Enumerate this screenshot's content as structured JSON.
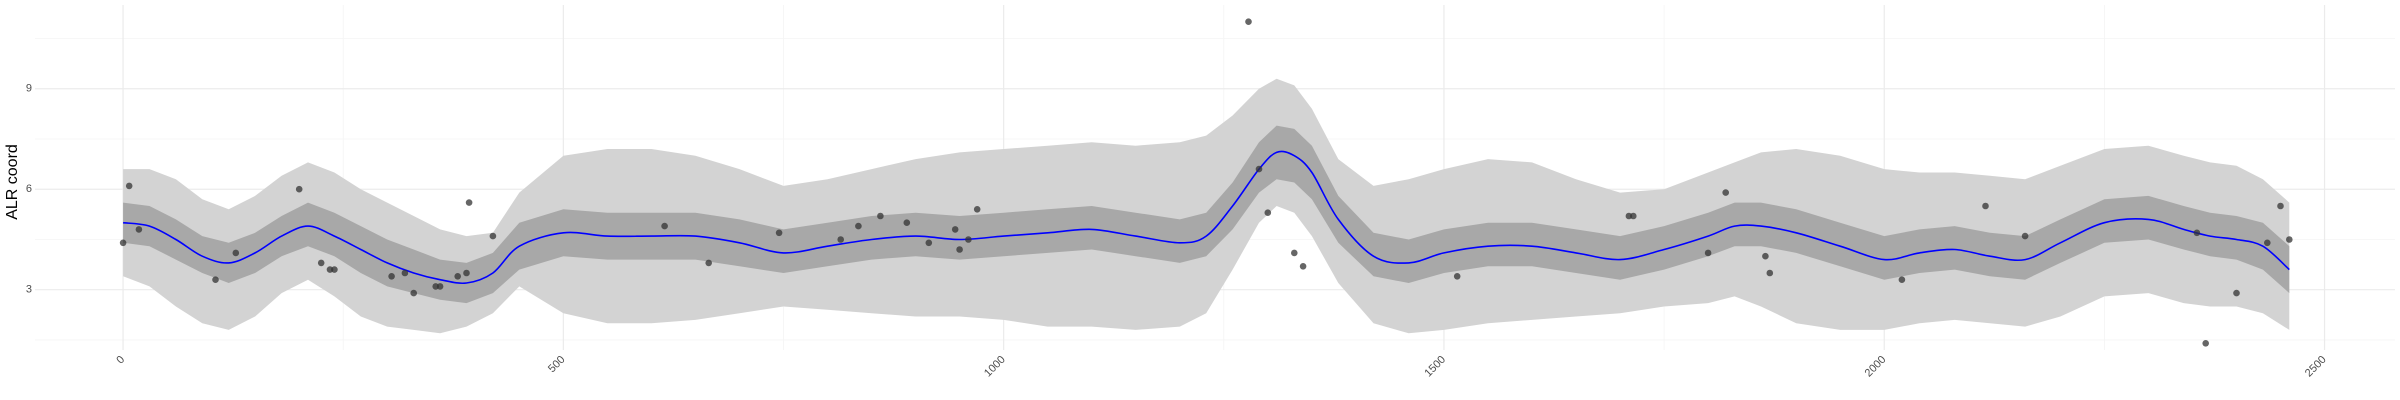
{
  "chart_data": {
    "type": "line",
    "title": "",
    "xlabel": "",
    "ylabel": "ALR coord",
    "xlim": [
      -100,
      2580
    ],
    "ylim": [
      1.2,
      11.5
    ],
    "x_ticks": [
      0,
      500,
      1000,
      1500,
      2000,
      2500
    ],
    "x_tick_labels": [
      "0",
      "500",
      "1000",
      "1500",
      "2000",
      "2500"
    ],
    "y_ticks": [
      3,
      6,
      9
    ],
    "y_tick_labels": [
      "3",
      "6",
      "9"
    ],
    "grid": true,
    "legend": "none",
    "colors": {
      "line": "#0000ff",
      "inner_band": "#a8a8a8",
      "outer_band": "#d3d3d3",
      "points": "#333333"
    },
    "series": [
      {
        "kind": "smooth_mean",
        "x": [
          0,
          30,
          60,
          90,
          120,
          150,
          180,
          210,
          240,
          270,
          300,
          330,
          360,
          390,
          420,
          450,
          500,
          550,
          600,
          650,
          700,
          750,
          800,
          850,
          900,
          950,
          1000,
          1050,
          1100,
          1150,
          1200,
          1230,
          1260,
          1290,
          1310,
          1330,
          1350,
          1380,
          1420,
          1460,
          1500,
          1550,
          1600,
          1650,
          1700,
          1750,
          1800,
          1830,
          1860,
          1900,
          1950,
          2000,
          2040,
          2080,
          2120,
          2160,
          2200,
          2250,
          2300,
          2340,
          2370,
          2400,
          2430,
          2460
        ],
        "mean": [
          5.0,
          4.9,
          4.5,
          4.0,
          3.8,
          4.1,
          4.6,
          4.9,
          4.6,
          4.2,
          3.8,
          3.5,
          3.3,
          3.2,
          3.5,
          4.3,
          4.7,
          4.6,
          4.6,
          4.6,
          4.4,
          4.1,
          4.3,
          4.5,
          4.6,
          4.5,
          4.6,
          4.7,
          4.8,
          4.6,
          4.4,
          4.6,
          5.5,
          6.6,
          7.1,
          7.0,
          6.5,
          5.1,
          4.0,
          3.8,
          4.1,
          4.3,
          4.3,
          4.1,
          3.9,
          4.2,
          4.6,
          4.9,
          4.9,
          4.7,
          4.3,
          3.9,
          4.1,
          4.2,
          4.0,
          3.9,
          4.4,
          5.0,
          5.1,
          4.8,
          4.6,
          4.5,
          4.3,
          3.6
        ],
        "inner_lower": [
          4.4,
          4.3,
          3.9,
          3.5,
          3.2,
          3.5,
          4.0,
          4.3,
          4.0,
          3.5,
          3.1,
          2.9,
          2.7,
          2.6,
          2.9,
          3.6,
          4.0,
          3.9,
          3.9,
          3.9,
          3.7,
          3.5,
          3.7,
          3.9,
          4.0,
          3.9,
          4.0,
          4.1,
          4.2,
          4.0,
          3.8,
          4.0,
          4.8,
          5.9,
          6.3,
          6.2,
          5.7,
          4.4,
          3.4,
          3.2,
          3.5,
          3.7,
          3.7,
          3.5,
          3.3,
          3.6,
          4.0,
          4.3,
          4.3,
          4.1,
          3.7,
          3.3,
          3.5,
          3.6,
          3.4,
          3.3,
          3.8,
          4.4,
          4.5,
          4.2,
          4.0,
          3.9,
          3.6,
          2.9
        ],
        "inner_upper": [
          5.6,
          5.5,
          5.1,
          4.6,
          4.4,
          4.7,
          5.2,
          5.6,
          5.3,
          4.9,
          4.5,
          4.2,
          3.9,
          3.8,
          4.1,
          5.0,
          5.4,
          5.3,
          5.3,
          5.3,
          5.1,
          4.8,
          5.0,
          5.2,
          5.3,
          5.2,
          5.3,
          5.4,
          5.5,
          5.3,
          5.1,
          5.3,
          6.2,
          7.4,
          7.9,
          7.8,
          7.3,
          5.8,
          4.7,
          4.5,
          4.8,
          5.0,
          5.0,
          4.8,
          4.6,
          4.9,
          5.3,
          5.6,
          5.6,
          5.4,
          5.0,
          4.6,
          4.8,
          4.9,
          4.7,
          4.6,
          5.1,
          5.7,
          5.8,
          5.5,
          5.3,
          5.2,
          5.0,
          4.3
        ],
        "outer_lower": [
          3.4,
          3.1,
          2.5,
          2.0,
          1.8,
          2.2,
          2.9,
          3.3,
          2.8,
          2.2,
          1.9,
          1.8,
          1.7,
          1.9,
          2.3,
          3.1,
          2.3,
          2.0,
          2.0,
          2.1,
          2.3,
          2.5,
          2.4,
          2.3,
          2.2,
          2.2,
          2.1,
          1.9,
          1.9,
          1.8,
          1.9,
          2.3,
          3.6,
          5.0,
          5.5,
          5.3,
          4.6,
          3.2,
          2.0,
          1.7,
          1.8,
          2.0,
          2.1,
          2.2,
          2.3,
          2.5,
          2.6,
          2.8,
          2.5,
          2.0,
          1.8,
          1.8,
          2.0,
          2.1,
          2.0,
          1.9,
          2.2,
          2.8,
          2.9,
          2.6,
          2.5,
          2.5,
          2.3,
          1.8
        ],
        "outer_upper": [
          6.6,
          6.6,
          6.3,
          5.7,
          5.4,
          5.8,
          6.4,
          6.8,
          6.5,
          6.0,
          5.6,
          5.2,
          4.8,
          4.6,
          4.7,
          5.9,
          7.0,
          7.2,
          7.2,
          7.0,
          6.6,
          6.1,
          6.3,
          6.6,
          6.9,
          7.1,
          7.2,
          7.3,
          7.4,
          7.3,
          7.4,
          7.6,
          8.2,
          9.0,
          9.3,
          9.1,
          8.4,
          6.9,
          6.1,
          6.3,
          6.6,
          6.9,
          6.8,
          6.3,
          5.9,
          6.0,
          6.5,
          6.8,
          7.1,
          7.2,
          7.0,
          6.6,
          6.5,
          6.5,
          6.4,
          6.3,
          6.7,
          7.2,
          7.3,
          7.0,
          6.8,
          6.7,
          6.3,
          5.6
        ]
      },
      {
        "kind": "observations",
        "x": [
          0,
          7,
          18,
          105,
          128,
          200,
          225,
          235,
          240,
          305,
          320,
          330,
          355,
          360,
          380,
          390,
          393,
          420,
          615,
          665,
          745,
          815,
          835,
          860,
          890,
          915,
          945,
          950,
          960,
          970,
          1278,
          1290,
          1300,
          1330,
          1340,
          1515,
          1710,
          1715,
          1800,
          1820,
          1865,
          1870,
          2020,
          2115,
          2160,
          2355,
          2365,
          2400,
          2435,
          2450,
          2460
        ],
        "y": [
          4.4,
          6.1,
          4.8,
          3.3,
          4.1,
          6.0,
          3.8,
          3.6,
          3.6,
          3.4,
          3.5,
          2.9,
          3.1,
          3.1,
          3.4,
          3.5,
          5.6,
          4.6,
          4.9,
          3.8,
          4.7,
          4.5,
          4.9,
          5.2,
          5.0,
          4.4,
          4.8,
          4.2,
          4.5,
          5.4,
          11.0,
          6.6,
          5.3,
          4.1,
          3.7,
          3.4,
          5.2,
          5.2,
          4.1,
          5.9,
          4.0,
          3.5,
          3.3,
          5.5,
          4.6,
          4.7,
          1.4,
          2.9,
          4.4,
          5.5,
          4.5
        ]
      }
    ]
  }
}
